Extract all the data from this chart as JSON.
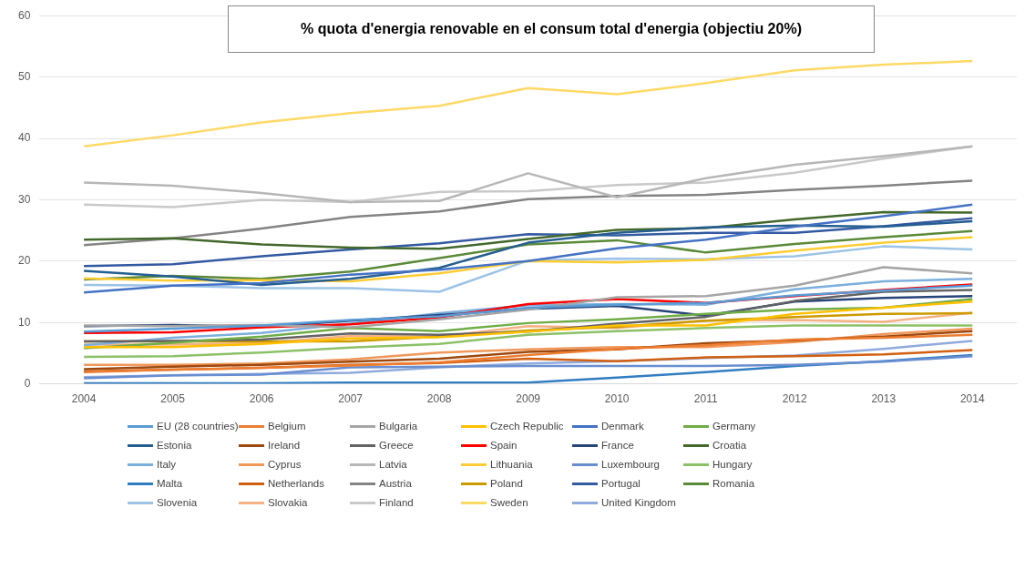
{
  "chart_data": {
    "type": "line",
    "title": "% quota d'energia renovable en el consum total d'energia (objectiu 20%)",
    "categories": [
      "2004",
      "2005",
      "2006",
      "2007",
      "2008",
      "2009",
      "2010",
      "2011",
      "2012",
      "2013",
      "2014"
    ],
    "ylim": [
      0,
      60
    ],
    "yticks": [
      0,
      10,
      20,
      30,
      40,
      50,
      60
    ],
    "grid": "y",
    "legend": "bottom",
    "marker": "none",
    "line_style": "solid",
    "series": [
      {
        "name": "EU (28 countries)",
        "color": "#5b9bd5",
        "values": [
          8.5,
          9.0,
          9.5,
          10.4,
          11.0,
          12.4,
          12.9,
          13.2,
          14.4,
          15.2,
          16.0
        ]
      },
      {
        "name": "Belgium",
        "color": "#ed7d31",
        "values": [
          1.9,
          2.3,
          2.6,
          3.0,
          3.5,
          4.7,
          5.7,
          6.3,
          7.2,
          7.5,
          8.0
        ]
      },
      {
        "name": "Bulgaria",
        "color": "#a5a5a5",
        "values": [
          9.5,
          9.4,
          9.6,
          9.2,
          10.5,
          12.1,
          14.1,
          14.3,
          16.0,
          19.0,
          18.0
        ]
      },
      {
        "name": "Czech Republic",
        "color": "#ffc000",
        "values": [
          6.0,
          6.0,
          6.5,
          7.4,
          7.6,
          8.5,
          9.5,
          9.5,
          11.4,
          12.4,
          13.4
        ]
      },
      {
        "name": "Denmark",
        "color": "#4472c4",
        "values": [
          14.9,
          16.0,
          16.4,
          17.8,
          18.6,
          20.0,
          22.1,
          23.5,
          25.6,
          27.3,
          29.2
        ]
      },
      {
        "name": "Germany",
        "color": "#70ad47",
        "values": [
          5.8,
          6.7,
          7.7,
          9.1,
          8.6,
          9.9,
          10.5,
          11.4,
          12.1,
          12.4,
          13.8
        ]
      },
      {
        "name": "Estonia",
        "color": "#255e91",
        "values": [
          18.4,
          17.5,
          16.1,
          17.1,
          18.9,
          23.0,
          24.6,
          25.5,
          25.8,
          25.6,
          26.5
        ]
      },
      {
        "name": "Ireland",
        "color": "#9e480e",
        "values": [
          2.4,
          2.8,
          3.1,
          3.6,
          4.1,
          5.2,
          5.6,
          6.6,
          7.1,
          7.7,
          8.6
        ]
      },
      {
        "name": "Greece",
        "color": "#636363",
        "values": [
          6.9,
          7.0,
          7.2,
          8.2,
          8.0,
          8.5,
          9.8,
          10.9,
          13.5,
          15.0,
          15.3
        ]
      },
      {
        "name": "Spain",
        "color": "#ff0000",
        "values": [
          8.3,
          8.4,
          9.2,
          9.7,
          10.8,
          13.0,
          13.8,
          13.2,
          14.3,
          15.3,
          16.2
        ]
      },
      {
        "name": "France",
        "color": "#264478",
        "values": [
          9.4,
          9.6,
          9.3,
          10.3,
          11.2,
          12.2,
          12.7,
          11.1,
          13.4,
          14.0,
          14.3
        ]
      },
      {
        "name": "Croatia",
        "color": "#43682b",
        "values": [
          23.5,
          23.7,
          22.7,
          22.2,
          22.0,
          23.6,
          25.1,
          25.4,
          26.8,
          28.0,
          27.9
        ]
      },
      {
        "name": "Italy",
        "color": "#7cafdd",
        "values": [
          6.3,
          7.5,
          8.3,
          9.8,
          11.5,
          12.8,
          13.0,
          12.9,
          15.4,
          16.7,
          17.1
        ]
      },
      {
        "name": "Cyprus",
        "color": "#f1975a",
        "values": [
          3.1,
          3.1,
          3.3,
          4.0,
          5.1,
          5.6,
          6.0,
          6.0,
          6.8,
          8.1,
          9.0
        ]
      },
      {
        "name": "Latvia",
        "color": "#b7b7b7",
        "values": [
          32.8,
          32.3,
          31.1,
          29.6,
          29.8,
          34.3,
          30.4,
          33.5,
          35.7,
          37.1,
          38.7
        ]
      },
      {
        "name": "Lithuania",
        "color": "#ffcd33",
        "values": [
          17.2,
          16.8,
          16.9,
          16.7,
          18.0,
          20.0,
          19.8,
          20.2,
          21.7,
          23.0,
          23.9
        ]
      },
      {
        "name": "Luxembourg",
        "color": "#698ed0",
        "values": [
          0.9,
          1.4,
          1.5,
          2.7,
          2.8,
          2.9,
          2.9,
          2.9,
          3.1,
          3.6,
          4.5
        ]
      },
      {
        "name": "Hungary",
        "color": "#8cc168",
        "values": [
          4.4,
          4.5,
          5.1,
          5.9,
          6.5,
          8.0,
          8.6,
          9.1,
          9.5,
          9.5,
          9.5
        ]
      },
      {
        "name": "Malta",
        "color": "#327dc2",
        "values": [
          0.1,
          0.1,
          0.1,
          0.2,
          0.2,
          0.2,
          1.0,
          1.9,
          2.9,
          3.7,
          4.7
        ]
      },
      {
        "name": "Netherlands",
        "color": "#d26012",
        "values": [
          2.0,
          2.3,
          2.6,
          3.1,
          3.4,
          4.1,
          3.7,
          4.3,
          4.5,
          4.8,
          5.5
        ]
      },
      {
        "name": "Austria",
        "color": "#848484",
        "values": [
          22.6,
          23.7,
          25.3,
          27.2,
          28.1,
          30.1,
          30.6,
          30.8,
          31.6,
          32.3,
          33.1
        ]
      },
      {
        "name": "Poland",
        "color": "#cc9a00",
        "values": [
          6.9,
          6.9,
          6.9,
          6.9,
          7.7,
          8.7,
          9.3,
          10.3,
          10.9,
          11.4,
          11.5
        ]
      },
      {
        "name": "Portugal",
        "color": "#335aa1",
        "values": [
          19.2,
          19.5,
          20.8,
          21.9,
          22.9,
          24.4,
          24.2,
          24.6,
          24.6,
          25.7,
          27.0
        ]
      },
      {
        "name": "Romania",
        "color": "#5a8a39",
        "values": [
          17.0,
          17.6,
          17.1,
          18.3,
          20.5,
          22.7,
          23.4,
          21.4,
          22.8,
          23.9,
          24.9
        ]
      },
      {
        "name": "Slovenia",
        "color": "#9dc3e6",
        "values": [
          16.1,
          16.0,
          15.6,
          15.6,
          15.0,
          20.1,
          20.4,
          20.3,
          20.8,
          22.4,
          21.9
        ]
      },
      {
        "name": "Slovakia",
        "color": "#f4b183",
        "values": [
          6.4,
          6.4,
          6.6,
          7.8,
          7.7,
          9.4,
          9.1,
          10.3,
          10.4,
          10.1,
          11.6
        ]
      },
      {
        "name": "Finland",
        "color": "#c9c9c9",
        "values": [
          29.2,
          28.8,
          30.0,
          29.6,
          31.3,
          31.4,
          32.4,
          32.8,
          34.4,
          36.7,
          38.7
        ]
      },
      {
        "name": "Sweden",
        "color": "#ffd966",
        "values": [
          38.7,
          40.5,
          42.6,
          44.1,
          45.3,
          48.2,
          47.2,
          49.0,
          51.1,
          52.0,
          52.6
        ]
      },
      {
        "name": "United Kingdom",
        "color": "#8faadc",
        "values": [
          1.1,
          1.4,
          1.6,
          1.8,
          2.7,
          3.3,
          3.7,
          4.2,
          4.6,
          5.7,
          7.0
        ]
      }
    ]
  }
}
